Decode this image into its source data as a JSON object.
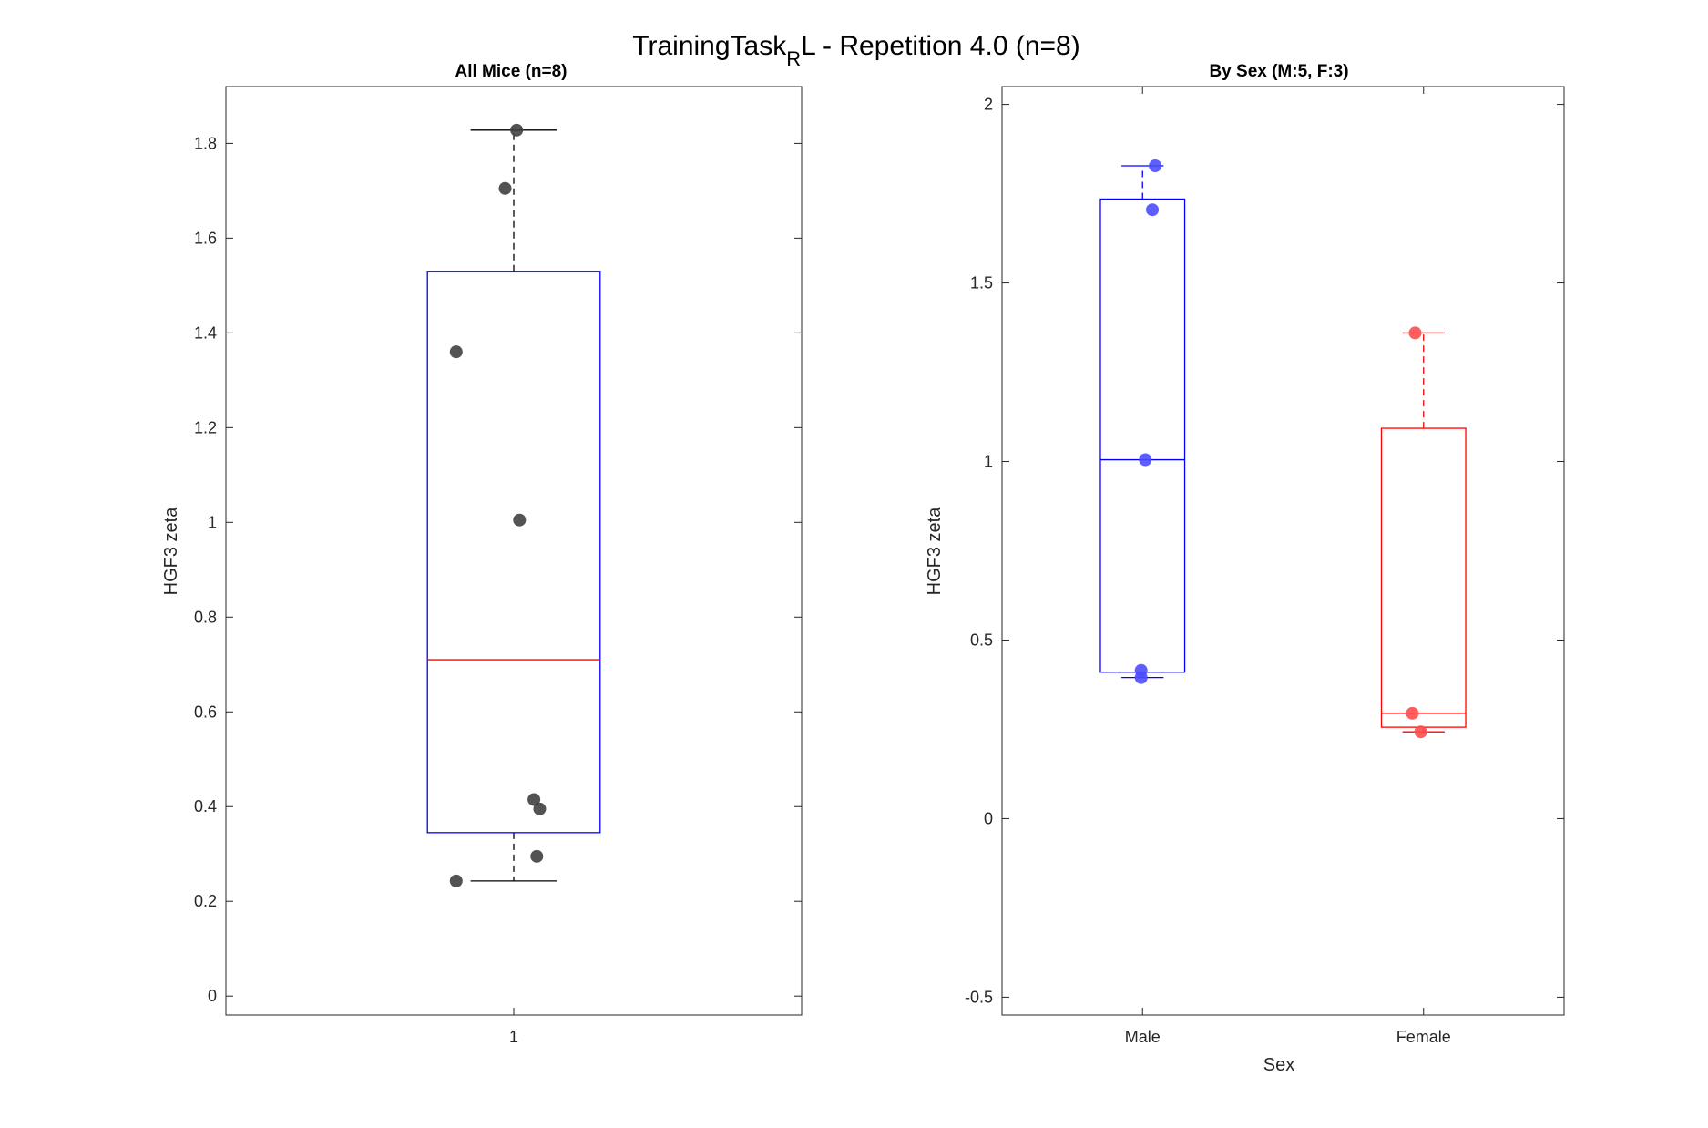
{
  "figure": {
    "title_main": "TrainingTask",
    "title_sub": "R",
    "title_rest": "L - Repetition 4.0 (n=8)"
  },
  "chart_data": [
    {
      "type": "box",
      "title": "All Mice (n=8)",
      "xlabel": "",
      "ylabel": "HGF3 zeta",
      "ylim": [
        -0.04,
        1.92
      ],
      "yticks": [
        0,
        0.2,
        0.4,
        0.6,
        0.8,
        1,
        1.2,
        1.4,
        1.6,
        1.8
      ],
      "ytick_labels": [
        "0",
        "0.2",
        "0.4",
        "0.6",
        "0.8",
        "1",
        "1.2",
        "1.4",
        "1.6",
        "1.8"
      ],
      "categories": [
        "1"
      ],
      "box_color": "#0000ff",
      "median_color": "#ff0000",
      "whisker_color": "#000000",
      "point_color": "#404040",
      "boxes": [
        {
          "category": "1",
          "q1": 0.345,
          "median": 0.71,
          "q3": 1.53,
          "whisker_low": 0.243,
          "whisker_high": 1.828
        }
      ],
      "points": [
        {
          "category": "1",
          "jitter": 0.005,
          "y": 1.828
        },
        {
          "category": "1",
          "jitter": -0.015,
          "y": 1.705
        },
        {
          "category": "1",
          "jitter": -0.1,
          "y": 1.36
        },
        {
          "category": "1",
          "jitter": 0.01,
          "y": 1.005
        },
        {
          "category": "1",
          "jitter": 0.035,
          "y": 0.415
        },
        {
          "category": "1",
          "jitter": 0.045,
          "y": 0.395
        },
        {
          "category": "1",
          "jitter": 0.04,
          "y": 0.295
        },
        {
          "category": "1",
          "jitter": -0.1,
          "y": 0.243
        }
      ]
    },
    {
      "type": "box",
      "title": "By Sex (M:5, F:3)",
      "xlabel": "Sex",
      "ylabel": "HGF3 zeta",
      "ylim": [
        -0.55,
        2.05
      ],
      "yticks": [
        -0.5,
        0,
        0.5,
        1,
        1.5,
        2
      ],
      "ytick_labels": [
        "-0.5",
        "0",
        "0.5",
        "1",
        "1.5",
        "2"
      ],
      "categories": [
        "Male",
        "Female"
      ],
      "groups": [
        {
          "name": "Male",
          "color": "#0000ff",
          "point_color": "#4d4dff",
          "q1": 0.41,
          "median": 1.005,
          "q3": 1.735,
          "whisker_low": 0.395,
          "whisker_high": 1.828,
          "points": [
            {
              "jitter": 0.045,
              "y": 1.828
            },
            {
              "jitter": 0.035,
              "y": 1.705
            },
            {
              "jitter": 0.01,
              "y": 1.005
            },
            {
              "jitter": -0.005,
              "y": 0.415
            },
            {
              "jitter": -0.005,
              "y": 0.395
            }
          ]
        },
        {
          "name": "Female",
          "color": "#ff0000",
          "point_color": "#ff4d4d",
          "q1": 0.256,
          "median": 0.295,
          "q3": 1.093,
          "whisker_low": 0.243,
          "whisker_high": 1.36,
          "points": [
            {
              "jitter": -0.03,
              "y": 1.36
            },
            {
              "jitter": -0.04,
              "y": 0.295
            },
            {
              "jitter": -0.01,
              "y": 0.243
            }
          ]
        }
      ]
    }
  ]
}
